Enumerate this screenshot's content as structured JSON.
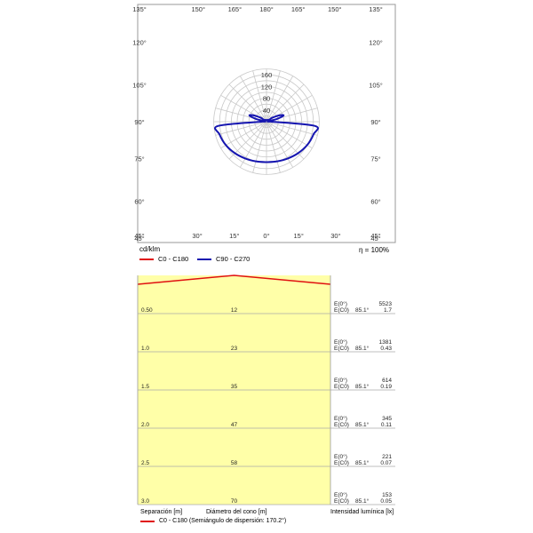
{
  "polar": {
    "unit_label": "cd/klm",
    "efficiency": "η = 100%",
    "angle_labels_top": [
      "135°",
      "150°",
      "165°",
      "180°",
      "165°",
      "150°",
      "135°"
    ],
    "angle_labels_side": [
      "120°",
      "105°",
      "90°",
      "75°",
      "60°",
      "45°"
    ],
    "angle_labels_bottom": [
      "45°",
      "30°",
      "15°",
      "0°",
      "15°",
      "30°",
      "45°"
    ],
    "radial_ticks": [
      "40",
      "80",
      "120",
      "160"
    ],
    "legend": [
      {
        "label": "C0 - C180",
        "color": "#e01010"
      },
      {
        "label": "C90 - C270",
        "color": "#1515b0"
      }
    ]
  },
  "chart_data": {
    "type": "polar",
    "r_max": 180,
    "r_ticks": [
      40,
      80,
      120,
      160
    ],
    "series": [
      {
        "name": "C90 - C270",
        "color": "#1515b0",
        "gamma_deg": [
          0,
          15,
          30,
          45,
          60,
          75,
          85,
          90,
          95,
          100,
          105,
          110,
          115,
          120,
          125,
          130
        ],
        "intensity": [
          138,
          140,
          145,
          152,
          160,
          166,
          166,
          18,
          10,
          5,
          38,
          62,
          53,
          36,
          22,
          10
        ]
      }
    ]
  },
  "cone": {
    "rows": [
      {
        "sep": "0.50",
        "diam": "12",
        "e0_label": "E(0°)",
        "e0": "5523",
        "ec_label": "E(C0)",
        "ec_ang": "85.1°",
        "ec": "1.7"
      },
      {
        "sep": "1.0",
        "diam": "23",
        "e0_label": "E(0°)",
        "e0": "1381",
        "ec_label": "E(C0)",
        "ec_ang": "85.1°",
        "ec": "0.43"
      },
      {
        "sep": "1.5",
        "diam": "35",
        "e0_label": "E(0°)",
        "e0": "614",
        "ec_label": "E(C0)",
        "ec_ang": "85.1°",
        "ec": "0.19"
      },
      {
        "sep": "2.0",
        "diam": "47",
        "e0_label": "E(0°)",
        "e0": "345",
        "ec_label": "E(C0)",
        "ec_ang": "85.1°",
        "ec": "0.11"
      },
      {
        "sep": "2.5",
        "diam": "58",
        "e0_label": "E(0°)",
        "e0": "221",
        "ec_label": "E(C0)",
        "ec_ang": "85.1°",
        "ec": "0.07"
      },
      {
        "sep": "3.0",
        "diam": "70",
        "e0_label": "E(0°)",
        "e0": "153",
        "ec_label": "E(C0)",
        "ec_ang": "85.1°",
        "ec": "0.05"
      }
    ],
    "xlabel_sep": "Separación [m]",
    "xlabel_diam": "Diámetro del cono [m]",
    "xlabel_int": "Intensidad lumínica [lx]",
    "legend_label": "C0 - C180 (Semiángulo de dispersión: 170.2°)",
    "legend_color": "#e01010",
    "fill_color": "#ffffa8"
  }
}
